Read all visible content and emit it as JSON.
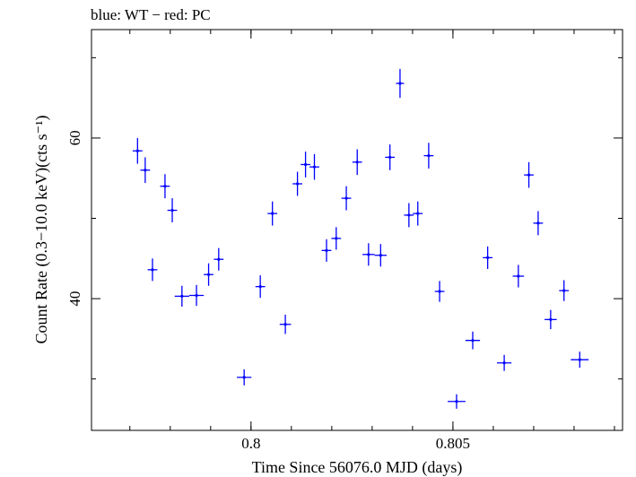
{
  "chart_data": {
    "type": "scatter",
    "title": "blue: WT − red: PC",
    "xlabel": "Time Since 56076.0 MJD (days)",
    "ylabel": "Count Rate (0.3−10.0 keV)(cts s⁻¹)",
    "xlim": [
      0.79605,
      0.8092
    ],
    "ylim": [
      23.6,
      73.5
    ],
    "x_ticks": [
      0.8,
      0.805
    ],
    "x_tick_labels": [
      "0.8",
      "0.805"
    ],
    "y_ticks": [
      40,
      60
    ],
    "y_tick_labels": [
      "40",
      "60"
    ],
    "y_minor_ticks": [
      30,
      50,
      70
    ],
    "x_minor_step": 0.001,
    "grid": false,
    "series": [
      {
        "color": "#0000ff",
        "points": [
          {
            "x": 0.79719,
            "y": 58.4,
            "xerr": 0.00012,
            "yerr": 1.6
          },
          {
            "x": 0.79738,
            "y": 56.0,
            "xerr": 0.00012,
            "yerr": 1.6
          },
          {
            "x": 0.79756,
            "y": 43.6,
            "xerr": 0.00012,
            "yerr": 1.4
          },
          {
            "x": 0.79787,
            "y": 54.0,
            "xerr": 0.00012,
            "yerr": 1.5
          },
          {
            "x": 0.79805,
            "y": 51.0,
            "xerr": 0.00012,
            "yerr": 1.5
          },
          {
            "x": 0.79829,
            "y": 40.3,
            "xerr": 0.00018,
            "yerr": 1.3
          },
          {
            "x": 0.79865,
            "y": 40.4,
            "xerr": 0.00018,
            "yerr": 1.3
          },
          {
            "x": 0.79895,
            "y": 43.0,
            "xerr": 0.00012,
            "yerr": 1.4
          },
          {
            "x": 0.7992,
            "y": 44.9,
            "xerr": 0.00012,
            "yerr": 1.4
          },
          {
            "x": 0.79983,
            "y": 30.2,
            "xerr": 0.00018,
            "yerr": 1.0
          },
          {
            "x": 0.80023,
            "y": 41.5,
            "xerr": 0.00012,
            "yerr": 1.4
          },
          {
            "x": 0.80053,
            "y": 50.6,
            "xerr": 0.00012,
            "yerr": 1.5
          },
          {
            "x": 0.80085,
            "y": 36.8,
            "xerr": 0.00014,
            "yerr": 1.2
          },
          {
            "x": 0.80115,
            "y": 54.3,
            "xerr": 0.00012,
            "yerr": 1.5
          },
          {
            "x": 0.80135,
            "y": 56.7,
            "xerr": 0.00012,
            "yerr": 1.6
          },
          {
            "x": 0.80157,
            "y": 56.4,
            "xerr": 0.00012,
            "yerr": 1.6
          },
          {
            "x": 0.80187,
            "y": 46.0,
            "xerr": 0.00012,
            "yerr": 1.4
          },
          {
            "x": 0.80211,
            "y": 47.5,
            "xerr": 0.00012,
            "yerr": 1.4
          },
          {
            "x": 0.80236,
            "y": 52.5,
            "xerr": 0.00012,
            "yerr": 1.5
          },
          {
            "x": 0.80263,
            "y": 57.0,
            "xerr": 0.00012,
            "yerr": 1.6
          },
          {
            "x": 0.80291,
            "y": 45.5,
            "xerr": 0.00015,
            "yerr": 1.4
          },
          {
            "x": 0.80321,
            "y": 45.4,
            "xerr": 0.00015,
            "yerr": 1.4
          },
          {
            "x": 0.80344,
            "y": 57.6,
            "xerr": 0.00012,
            "yerr": 1.6
          },
          {
            "x": 0.80369,
            "y": 66.8,
            "xerr": 0.0001,
            "yerr": 1.8
          },
          {
            "x": 0.80391,
            "y": 50.4,
            "xerr": 0.00012,
            "yerr": 1.5
          },
          {
            "x": 0.80413,
            "y": 50.6,
            "xerr": 0.00012,
            "yerr": 1.5
          },
          {
            "x": 0.8044,
            "y": 57.8,
            "xerr": 0.00012,
            "yerr": 1.6
          },
          {
            "x": 0.80467,
            "y": 40.9,
            "xerr": 0.00012,
            "yerr": 1.3
          },
          {
            "x": 0.80509,
            "y": 27.2,
            "xerr": 0.00022,
            "yerr": 0.9
          },
          {
            "x": 0.80549,
            "y": 34.8,
            "xerr": 0.00018,
            "yerr": 1.1
          },
          {
            "x": 0.80586,
            "y": 45.1,
            "xerr": 0.00012,
            "yerr": 1.4
          },
          {
            "x": 0.80627,
            "y": 32.0,
            "xerr": 0.00018,
            "yerr": 1.0
          },
          {
            "x": 0.80662,
            "y": 42.8,
            "xerr": 0.00014,
            "yerr": 1.4
          },
          {
            "x": 0.80688,
            "y": 55.4,
            "xerr": 0.00012,
            "yerr": 1.6
          },
          {
            "x": 0.80711,
            "y": 49.4,
            "xerr": 0.00012,
            "yerr": 1.5
          },
          {
            "x": 0.80742,
            "y": 37.4,
            "xerr": 0.00015,
            "yerr": 1.2
          },
          {
            "x": 0.80775,
            "y": 41.0,
            "xerr": 0.00012,
            "yerr": 1.3
          },
          {
            "x": 0.80814,
            "y": 32.4,
            "xerr": 0.00022,
            "yerr": 1.0
          }
        ]
      }
    ]
  }
}
